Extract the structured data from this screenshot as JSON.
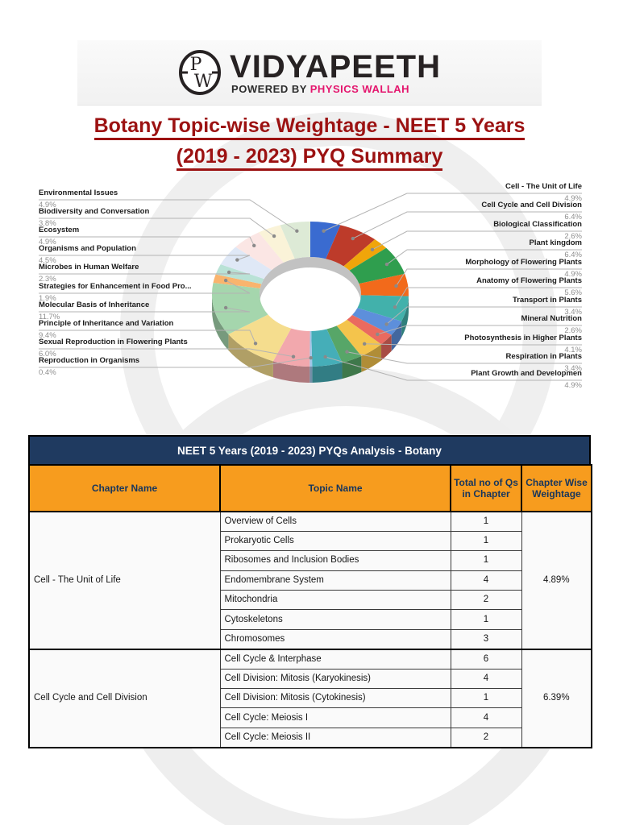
{
  "header": {
    "logo_monogram_top": "P",
    "logo_monogram_bottom": "W",
    "brand": "VIDYAPEETH",
    "powered_prefix": "POWERED BY ",
    "powered_brand": "PHYSICS WALLAH",
    "brand_color": "#272223",
    "powered_brand_color": "#e4156d"
  },
  "title": {
    "line1": "Botany Topic-wise Weightage - NEET 5 Years",
    "line2": "(2019 - 2023) PYQ Summary",
    "color": "#9c1212"
  },
  "chart_data": {
    "type": "pie",
    "donut": true,
    "style": "3d",
    "unit": "%",
    "start_angle_deg": -90,
    "direction": "clockwise",
    "segments": [
      {
        "label": "Cell - The Unit of Life",
        "value": 4.9,
        "color": "#3a6bd0"
      },
      {
        "label": "Cell Cycle and Cell Division",
        "value": 6.4,
        "color": "#bd3b2a"
      },
      {
        "label": "Biological Classification",
        "value": 2.6,
        "color": "#f0a50a"
      },
      {
        "label": "Plant kingdom",
        "value": 6.4,
        "color": "#2f9e4e"
      },
      {
        "label": "Morphology of Flowering Plants",
        "value": 4.9,
        "color": "#f26a1b"
      },
      {
        "label": "Anatomy of Flowering Plants",
        "value": 5.6,
        "color": "#42b1ab"
      },
      {
        "label": "Transport in Plants",
        "value": 3.4,
        "color": "#5d8fdb"
      },
      {
        "label": "Mineral Nutrition",
        "value": 2.6,
        "color": "#ea6a5f"
      },
      {
        "label": "Photosynthesis in Higher Plants",
        "value": 4.1,
        "color": "#f4c44c"
      },
      {
        "label": "Respiration in Plants",
        "value": 3.4,
        "color": "#57a668"
      },
      {
        "label": "Plant Growth and Developmen",
        "value": 4.9,
        "color": "#45aeb8"
      },
      {
        "label": "Reproduction in Organisms",
        "value": 0.4,
        "color": "#9fc5e8"
      },
      {
        "label": "Sexual Reproduction in Flowering Plants",
        "value": 6.0,
        "color": "#f2a8ad"
      },
      {
        "label": "Principle of Inheritance and Variation",
        "value": 9.4,
        "color": "#f5dd8e"
      },
      {
        "label": "Molecular Basis of Inheritance",
        "value": 11.7,
        "color": "#a5d6ad"
      },
      {
        "label": "Strategies for Enhancement in Food Pro...",
        "value": 1.9,
        "color": "#f9b46e"
      },
      {
        "label": "Microbes in Human Welfare",
        "value": 2.3,
        "color": "#b9e2d6"
      },
      {
        "label": "Organisms and Population",
        "value": 4.5,
        "color": "#dfe8f6"
      },
      {
        "label": "Ecosystem",
        "value": 4.9,
        "color": "#fbe6e4"
      },
      {
        "label": "Biodiversity and Conversation",
        "value": 3.8,
        "color": "#faf3d8"
      },
      {
        "label": "Environmental Issues",
        "value": 4.9,
        "color": "#ddead6"
      }
    ],
    "right_labels": [
      {
        "label": "Cell - The Unit of Life",
        "pct": "4.9%",
        "seg": 0
      },
      {
        "label": "Cell Cycle and Cell Division",
        "pct": "6.4%",
        "seg": 1
      },
      {
        "label": "Biological Classification",
        "pct": "2.6%",
        "seg": 2
      },
      {
        "label": "Plant kingdom",
        "pct": "6.4%",
        "seg": 3
      },
      {
        "label": "Morphology of Flowering Plants",
        "pct": "4.9%",
        "seg": 4
      },
      {
        "label": "Anatomy of Flowering Plants",
        "pct": "5.6%",
        "seg": 5
      },
      {
        "label": "Transport in Plants",
        "pct": "3.4%",
        "seg": 6
      },
      {
        "label": "Mineral Nutrition",
        "pct": "2.6%",
        "seg": 7
      },
      {
        "label": "Photosynthesis in Higher Plants",
        "pct": "4.1%",
        "seg": 8
      },
      {
        "label": "Respiration in Plants",
        "pct": "3.4%",
        "seg": 9
      },
      {
        "label": "Plant Growth and Developmen",
        "pct": "4.9%",
        "seg": 10
      }
    ],
    "left_labels": [
      {
        "label": "Environmental Issues",
        "pct": "4.9%",
        "seg": 20
      },
      {
        "label": "Biodiversity and Conversation",
        "pct": "3.8%",
        "seg": 19
      },
      {
        "label": "Ecosystem",
        "pct": "4.9%",
        "seg": 18
      },
      {
        "label": "Organisms and Population",
        "pct": "4.5%",
        "seg": 17
      },
      {
        "label": "Microbes in Human Welfare",
        "pct": "2.3%",
        "seg": 16
      },
      {
        "label": "Strategies for Enhancement in Food Pro...",
        "pct": "1.9%",
        "seg": 15
      },
      {
        "label": "Molecular Basis of Inheritance",
        "pct": "11.7%",
        "seg": 14
      },
      {
        "label": "Principle of Inheritance and Variation",
        "pct": "9.4%",
        "seg": 13
      },
      {
        "label": "Sexual Reproduction in Flowering Plants",
        "pct": "6.0%",
        "seg": 12
      },
      {
        "label": "Reproduction in Organisms",
        "pct": "0.4%",
        "seg": 11
      }
    ]
  },
  "table": {
    "title": "NEET 5 Years (2019 - 2023) PYQs Analysis - Botany",
    "title_bg": "#1f3a60",
    "header_bg": "#f79c1e",
    "columns": [
      "Chapter Name",
      "Topic Name",
      "Total no of Qs in Chapter",
      "Chapter Wise Weightage"
    ],
    "chapters": [
      {
        "name": "Cell - The Unit of Life",
        "weightage": "4.89%",
        "topics": [
          {
            "topic": "Overview of Cells",
            "qs": "1"
          },
          {
            "topic": "Prokaryotic Cells",
            "qs": "1"
          },
          {
            "topic": "Ribosomes and Inclusion Bodies",
            "qs": "1"
          },
          {
            "topic": "Endomembrane System",
            "qs": "4"
          },
          {
            "topic": "Mitochondria",
            "qs": "2"
          },
          {
            "topic": "Cytoskeletons",
            "qs": "1"
          },
          {
            "topic": "Chromosomes",
            "qs": "3"
          }
        ]
      },
      {
        "name": "Cell Cycle and Cell Division",
        "weightage": "6.39%",
        "topics": [
          {
            "topic": "Cell Cycle & Interphase",
            "qs": "6"
          },
          {
            "topic": "Cell Division: Mitosis (Karyokinesis)",
            "qs": "4"
          },
          {
            "topic": "Cell Division: Mitosis (Cytokinesis)",
            "qs": "1"
          },
          {
            "topic": "Cell Cycle: Meiosis I",
            "qs": "4"
          },
          {
            "topic": "Cell Cycle: Meiosis II",
            "qs": "2"
          }
        ]
      }
    ]
  }
}
